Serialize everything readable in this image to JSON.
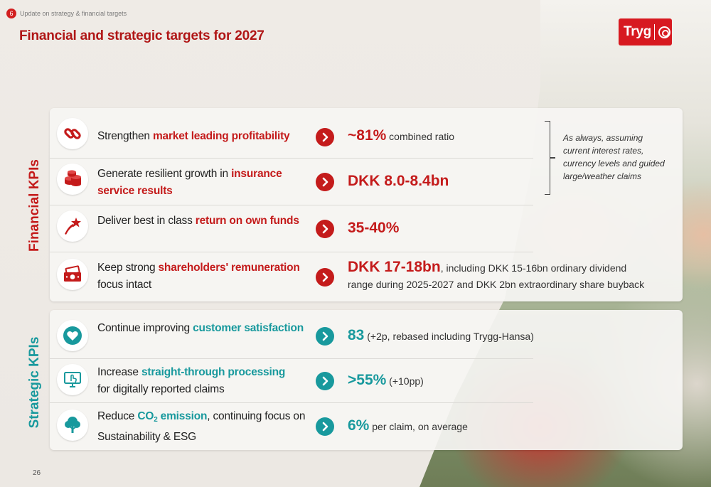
{
  "header": {
    "section_number": "6",
    "breadcrumb": "Update on strategy & financial  targets",
    "title": "Financial and strategic targets for 2027"
  },
  "logo": {
    "text": "Tryg"
  },
  "colors": {
    "brand_red": "#c41b1b",
    "teal": "#18999d"
  },
  "financial": {
    "label": "Financial KPIs",
    "note": "As always, assuming current interest rates, currency levels and guided large/weather claims",
    "rows": [
      {
        "icon": "chain-link-icon",
        "text_plain": "Strengthen ",
        "text_highlight": "market leading profitability",
        "text_after": "",
        "value_big": "~81%",
        "value_rest": " combined ratio"
      },
      {
        "icon": "coin-stack-icon",
        "text_plain": "Generate resilient growth in ",
        "text_highlight": "insurance service results",
        "text_after": "",
        "value_big": "DKK 8.0-8.4bn",
        "value_rest": ""
      },
      {
        "icon": "shooting-star-icon",
        "text_plain": "Deliver best in class ",
        "text_highlight": "return on own funds",
        "text_after": "",
        "value_big": "35-40%",
        "value_rest": ""
      },
      {
        "icon": "cash-icon",
        "text_plain": "Keep strong ",
        "text_highlight": "shareholders' remuneration",
        "text_after": "  focus intact",
        "value_big": "DKK 17-18bn",
        "value_rest": ", including DKK 15-16bn ordinary dividend range during 2025-2027 and DKK 2bn extraordinary  share buyback"
      }
    ]
  },
  "strategic": {
    "label": "Strategic KPIs",
    "rows": [
      {
        "icon": "heart-icon",
        "text_plain": "Continue improving ",
        "text_highlight": "customer satisfaction",
        "text_after": "",
        "value_big": "83",
        "value_rest": " (+2p, rebased including Trygg-Hansa)"
      },
      {
        "icon": "monitor-touch-icon",
        "text_plain": "Increase ",
        "text_highlight": "straight-through processing",
        "text_after": "for digitally reported claims",
        "value_big": ">55%",
        "value_rest": " (+10pp)"
      },
      {
        "icon": "tree-icon",
        "text_plain": "Reduce ",
        "text_highlight_pre": "CO",
        "text_highlight_sub": "2",
        "text_highlight_post": " emission",
        "text_after": ", continuing focus on Sustainability & ESG",
        "value_big": "6%",
        "value_rest": " per claim, on average"
      }
    ]
  },
  "page_number": "26"
}
